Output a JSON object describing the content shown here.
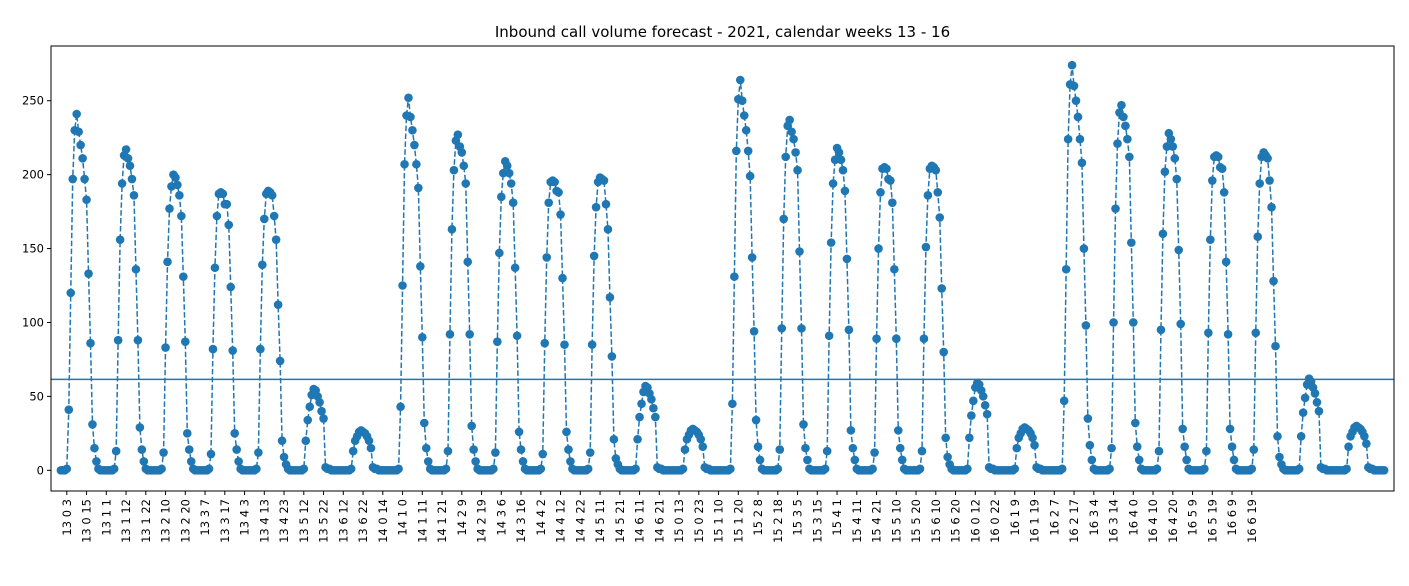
{
  "chart_data": {
    "type": "line",
    "title": "Inbound call volume forecast - 2021, calendar weeks 13 - 16",
    "xlabel": "",
    "ylabel": "",
    "ylim": [
      -14,
      287
    ],
    "yticks": [
      0,
      50,
      100,
      150,
      200,
      250
    ],
    "grid": false,
    "legend": "none",
    "line_style": "dashed",
    "marker": "circle",
    "color": "#1f77b4",
    "reference_line": {
      "y": 61.5,
      "color": "#1f77b4"
    },
    "xtick_labels": [
      "13 0 3",
      "13 0 15",
      "13 1 1",
      "13 1 12",
      "13 1 22",
      "13 2 10",
      "13 2 20",
      "13 3 7",
      "13 3 17",
      "13 4 3",
      "13 4 13",
      "13 4 23",
      "13 5 12",
      "13 5 22",
      "13 6 12",
      "13 6 22",
      "14 0 14",
      "14 1 0",
      "14 1 11",
      "14 1 21",
      "14 2 9",
      "14 2 19",
      "14 3 6",
      "14 3 16",
      "14 4 2",
      "14 4 12",
      "14 4 22",
      "14 5 11",
      "14 5 21",
      "14 6 11",
      "14 6 21",
      "15 0 13",
      "15 0 23",
      "15 1 10",
      "15 1 20",
      "15 2 8",
      "15 2 18",
      "15 3 5",
      "15 3 15",
      "15 4 1",
      "15 4 11",
      "15 4 21",
      "15 5 10",
      "15 5 20",
      "15 6 10",
      "15 6 20",
      "16 0 12",
      "16 0 22",
      "16 1 9",
      "16 1 19",
      "16 2 7",
      "16 2 17",
      "16 3 4",
      "16 3 14",
      "16 4 0",
      "16 4 10",
      "16 4 20",
      "16 5 9",
      "16 5 19",
      "16 6 9",
      "16 6 19"
    ],
    "xtick_index_start": 3,
    "xtick_index_step": 10,
    "series": [
      {
        "values": [
          0,
          0,
          0,
          1,
          41,
          120,
          197,
          230,
          241,
          229,
          220,
          211,
          197,
          183,
          133,
          86,
          31,
          15,
          6,
          1,
          0,
          0,
          0,
          0,
          0,
          0,
          0,
          1,
          13,
          88,
          156,
          194,
          213,
          217,
          211,
          206,
          197,
          186,
          136,
          88,
          29,
          14,
          6,
          1,
          0,
          0,
          0,
          0,
          0,
          0,
          0,
          1,
          12,
          83,
          141,
          177,
          192,
          200,
          198,
          193,
          186,
          172,
          131,
          87,
          25,
          14,
          6,
          1,
          0,
          0,
          0,
          0,
          0,
          0,
          0,
          1,
          11,
          82,
          137,
          172,
          187,
          188,
          187,
          180,
          180,
          166,
          124,
          81,
          25,
          14,
          6,
          1,
          0,
          0,
          0,
          0,
          0,
          0,
          0,
          1,
          12,
          82,
          139,
          170,
          187,
          189,
          188,
          186,
          172,
          156,
          112,
          74,
          20,
          9,
          4,
          1,
          0,
          0,
          0,
          0,
          0,
          0,
          0,
          1,
          20,
          34,
          43,
          51,
          55,
          54,
          50,
          46,
          40,
          35,
          2,
          1,
          1,
          0,
          0,
          0,
          0,
          0,
          0,
          0,
          0,
          0,
          0,
          1,
          13,
          20,
          23,
          26,
          27,
          26,
          25,
          23,
          20,
          15,
          2,
          1,
          1,
          0,
          0,
          0,
          0,
          0,
          0,
          0,
          0,
          0,
          0,
          1,
          43,
          125,
          207,
          240,
          252,
          239,
          230,
          220,
          207,
          191,
          138,
          90,
          32,
          15,
          6,
          1,
          0,
          0,
          0,
          0,
          0,
          0,
          0,
          1,
          13,
          92,
          163,
          203,
          223,
          227,
          219,
          215,
          206,
          194,
          141,
          92,
          30,
          14,
          6,
          1,
          0,
          0,
          0,
          0,
          0,
          0,
          0,
          1,
          12,
          87,
          147,
          185,
          201,
          209,
          206,
          201,
          194,
          181,
          137,
          91,
          26,
          14,
          6,
          1,
          0,
          0,
          0,
          0,
          0,
          0,
          0,
          1,
          11,
          86,
          144,
          181,
          195,
          196,
          195,
          189,
          188,
          173,
          130,
          85,
          26,
          14,
          6,
          1,
          0,
          0,
          0,
          0,
          0,
          0,
          0,
          1,
          12,
          85,
          145,
          178,
          195,
          198,
          197,
          196,
          180,
          163,
          117,
          77,
          21,
          8,
          4,
          1,
          0,
          0,
          0,
          0,
          0,
          0,
          0,
          1,
          21,
          36,
          45,
          53,
          57,
          56,
          52,
          48,
          42,
          36,
          2,
          1,
          1,
          0,
          0,
          0,
          0,
          0,
          0,
          0,
          0,
          0,
          0,
          1,
          14,
          21,
          24,
          27,
          28,
          27,
          26,
          24,
          21,
          16,
          2,
          1,
          1,
          0,
          0,
          0,
          0,
          0,
          0,
          0,
          0,
          0,
          0,
          1,
          45,
          131,
          216,
          251,
          264,
          250,
          240,
          230,
          216,
          199,
          144,
          94,
          34,
          16,
          7,
          1,
          0,
          0,
          0,
          0,
          0,
          0,
          0,
          1,
          14,
          96,
          170,
          212,
          233,
          237,
          229,
          224,
          215,
          203,
          148,
          96,
          31,
          15,
          7,
          1,
          0,
          0,
          0,
          0,
          0,
          0,
          0,
          1,
          13,
          91,
          154,
          194,
          210,
          218,
          215,
          210,
          203,
          189,
          143,
          95,
          27,
          15,
          7,
          1,
          0,
          0,
          0,
          0,
          0,
          0,
          0,
          1,
          12,
          89,
          150,
          188,
          204,
          205,
          204,
          197,
          196,
          181,
          136,
          89,
          27,
          15,
          7,
          1,
          0,
          0,
          0,
          0,
          0,
          0,
          0,
          1,
          13,
          89,
          151,
          186,
          204,
          206,
          205,
          203,
          188,
          171,
          123,
          80,
          22,
          9,
          4,
          1,
          0,
          0,
          0,
          0,
          0,
          0,
          0,
          1,
          22,
          37,
          47,
          56,
          59,
          58,
          54,
          50,
          44,
          38,
          2,
          1,
          1,
          0,
          0,
          0,
          0,
          0,
          0,
          0,
          0,
          0,
          0,
          1,
          15,
          22,
          25,
          28,
          29,
          28,
          27,
          25,
          22,
          17,
          2,
          1,
          1,
          0,
          0,
          0,
          0,
          0,
          0,
          0,
          0,
          0,
          0,
          1,
          47,
          136,
          224,
          261,
          274,
          260,
          250,
          239,
          224,
          208,
          150,
          98,
          35,
          17,
          7,
          1,
          0,
          0,
          0,
          0,
          0,
          0,
          0,
          1,
          15,
          100,
          177,
          221,
          242,
          247,
          239,
          233,
          224,
          212,
          154,
          100,
          32,
          16,
          7,
          1,
          0,
          0,
          0,
          0,
          0,
          0,
          0,
          1,
          13,
          95,
          160,
          202,
          219,
          228,
          224,
          219,
          211,
          197,
          149,
          99,
          28,
          16,
          7,
          1,
          0,
          0,
          0,
          0,
          0,
          0,
          0,
          1,
          13,
          93,
          156,
          196,
          212,
          213,
          212,
          205,
          204,
          188,
          141,
          92,
          28,
          16,
          7,
          1,
          0,
          0,
          0,
          0,
          0,
          0,
          0,
          1,
          14,
          93,
          158,
          194,
          212,
          215,
          213,
          211,
          196,
          178,
          128,
          84,
          23,
          9,
          4,
          1,
          0,
          0,
          0,
          0,
          0,
          0,
          0,
          1,
          23,
          39,
          49,
          58,
          62,
          60,
          56,
          52,
          46,
          40,
          2,
          1,
          1,
          0,
          0,
          0,
          0,
          0,
          0,
          0,
          0,
          0,
          0,
          1,
          16,
          23,
          26,
          29,
          30,
          29,
          28,
          26,
          23,
          18,
          2,
          1,
          1,
          0,
          0,
          0,
          0,
          0,
          0
        ]
      }
    ]
  }
}
